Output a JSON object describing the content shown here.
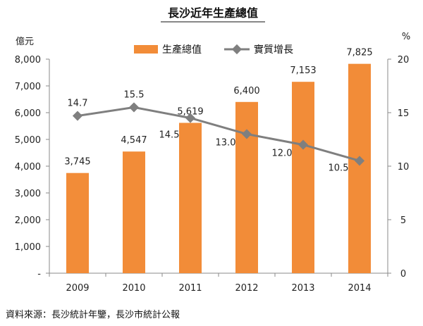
{
  "chart_data": {
    "type": "bar",
    "title": "長沙近年生產總值",
    "categories": [
      "2009",
      "2010",
      "2011",
      "2012",
      "2013",
      "2014"
    ],
    "left_axis": {
      "unit": "億元",
      "min": 0,
      "max": 8000,
      "step": 1000,
      "tick_labels": [
        "-",
        "1,000",
        "2,000",
        "3,000",
        "4,000",
        "5,000",
        "6,000",
        "7,000",
        "8,000"
      ]
    },
    "right_axis": {
      "unit": "%",
      "min": 0,
      "max": 20,
      "step": 5,
      "tick_labels": [
        "0",
        "5",
        "10",
        "15",
        "20"
      ]
    },
    "series": [
      {
        "name": "生產總值",
        "type": "bar",
        "axis": "left",
        "color": "#F28C38",
        "values": [
          3745,
          4547,
          5619,
          6400,
          7153,
          7825
        ],
        "labels": [
          "3,745",
          "4,547",
          "5,619",
          "6,400",
          "7,153",
          "7,825"
        ]
      },
      {
        "name": "實質增長",
        "type": "line",
        "axis": "right",
        "color": "#7F7F7F",
        "values": [
          14.7,
          15.5,
          14.5,
          13.0,
          12.0,
          10.5
        ],
        "labels": [
          "14.7",
          "15.5",
          "14.5",
          "13.0",
          "12.0",
          "10.5"
        ]
      }
    ],
    "legend_position": "top-center",
    "grid": false
  },
  "source": "資料來源：長沙統計年鑒，長沙市統計公報"
}
